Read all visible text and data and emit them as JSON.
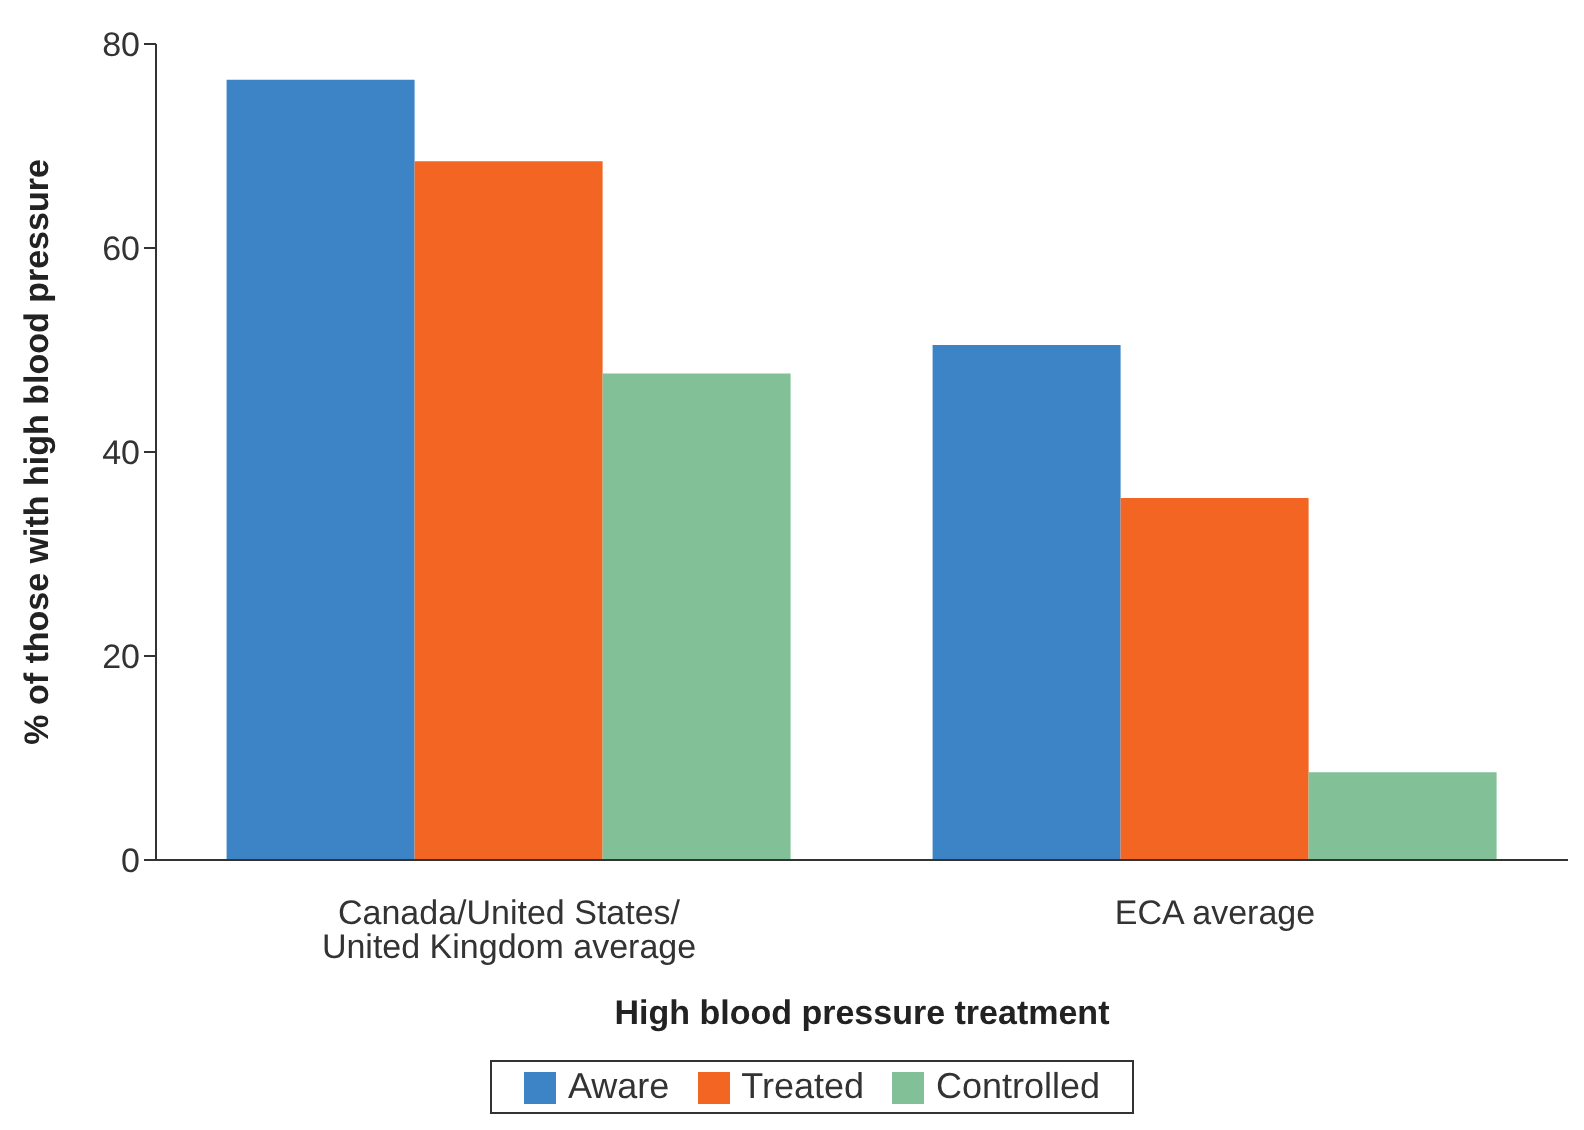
{
  "chart_data": {
    "type": "bar",
    "xlabel": "High blood pressure treatment",
    "ylabel": "% of those with high blood pressure",
    "categories": [
      "Canada/United States/ United Kingdom average",
      "ECA average"
    ],
    "series": [
      {
        "name": "Aware",
        "color": "#3d84c6",
        "values": [
          76.5,
          50.5
        ]
      },
      {
        "name": "Treated",
        "color": "#f26522",
        "values": [
          68.5,
          35.5
        ]
      },
      {
        "name": "Controlled",
        "color": "#82c197",
        "values": [
          47.7,
          8.6
        ]
      }
    ],
    "ylim": [
      0,
      80
    ],
    "yticks": [
      0,
      20,
      40,
      60,
      80
    ],
    "grid": false,
    "legend": "bottom"
  }
}
